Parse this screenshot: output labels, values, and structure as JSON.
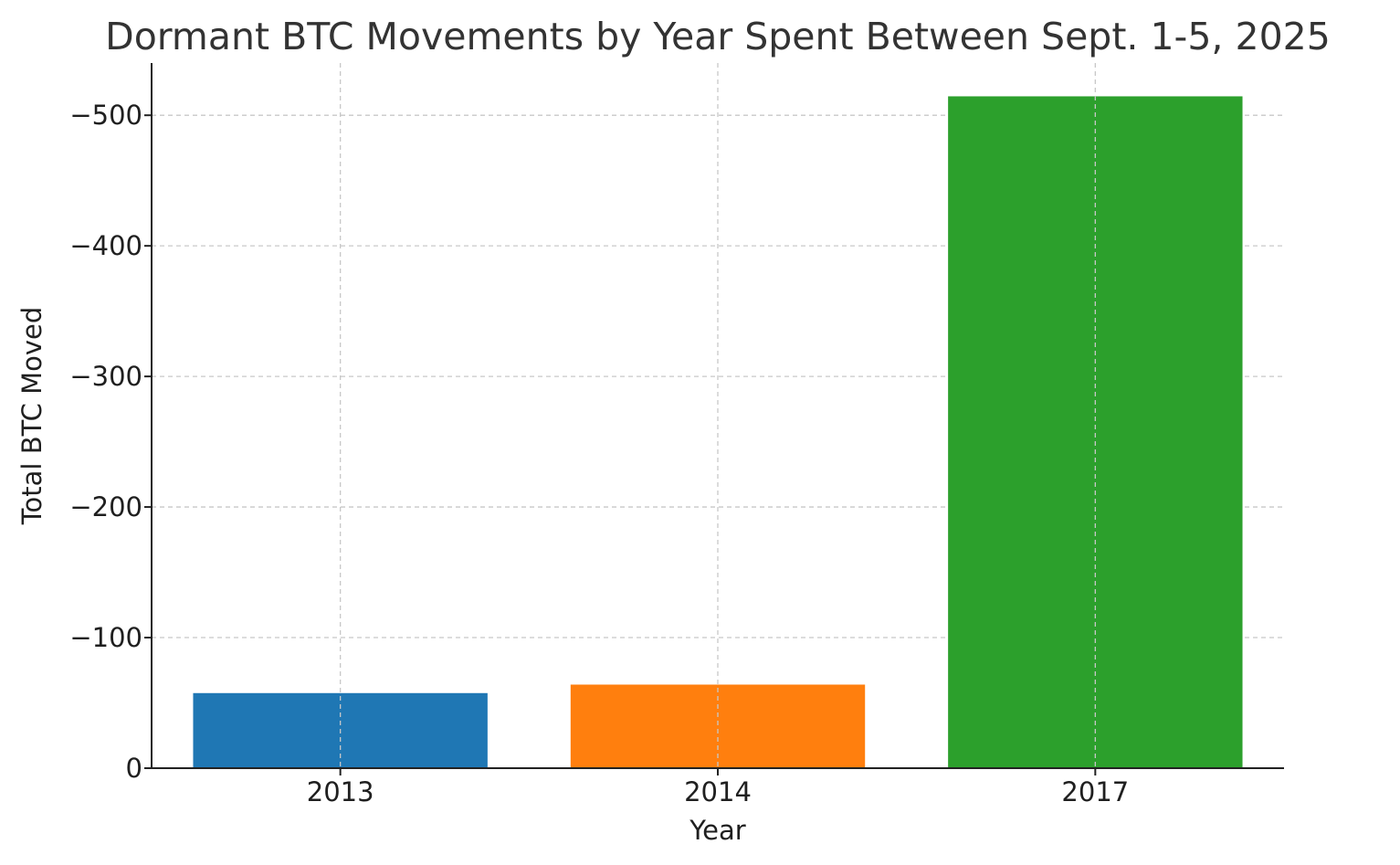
{
  "chart_data": {
    "type": "bar",
    "title": "Dormant BTC Movements by Year Spent Between Sept. 1-5, 2025",
    "xlabel": "Year",
    "ylabel": "Total BTC Moved",
    "categories": [
      "2013",
      "2014",
      "2017"
    ],
    "values": [
      -57.5,
      -64,
      -514.5
    ],
    "colors": [
      "#1f77b4",
      "#ff7f0e",
      "#2ca02c"
    ],
    "y_axis_inverted": true,
    "ylim": [
      0,
      -540
    ],
    "yticks": [
      0,
      -100,
      -200,
      -300,
      -400,
      -500
    ],
    "ytick_labels": [
      "0",
      "−100",
      "−200",
      "−300",
      "−400",
      "−500"
    ],
    "grid": true,
    "grid_style": "dashed",
    "legend": "none"
  }
}
